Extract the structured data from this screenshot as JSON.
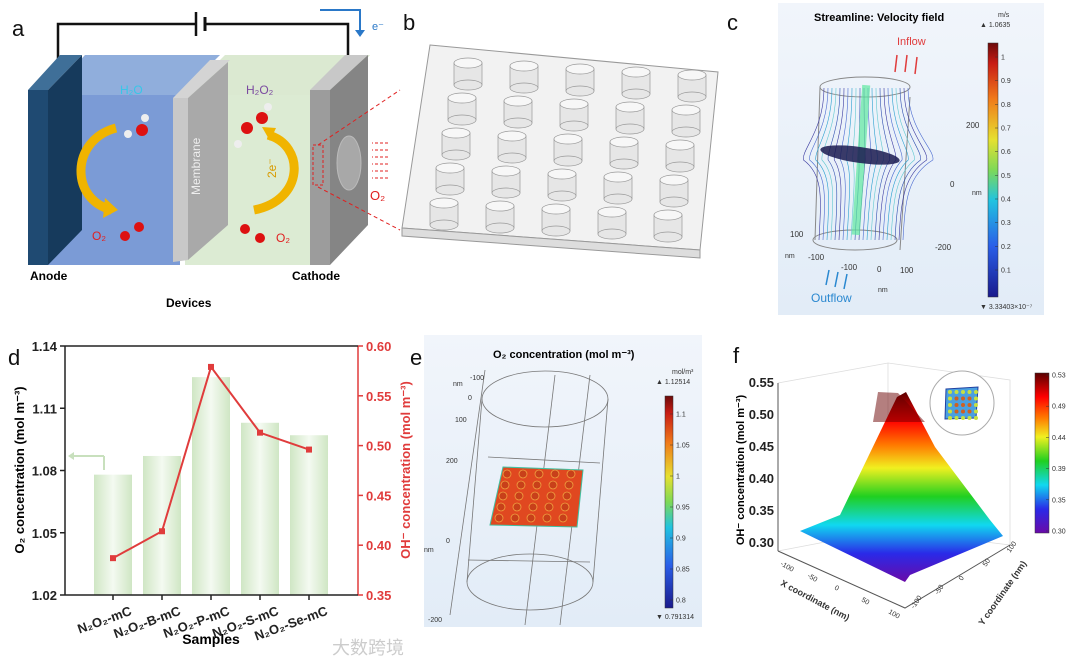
{
  "panels": {
    "a": {
      "label": "a",
      "electron": "e⁻",
      "water": "H₂O",
      "peroxide": "H₂O₂",
      "membrane": "Membrane",
      "two_e": "2e⁻",
      "o2_left": "O₂",
      "o2_right": "O₂",
      "o2_inlet": "O₂",
      "anode": "Anode",
      "cathode": "Cathode",
      "caption": "Devices"
    },
    "b": {
      "label": "b"
    },
    "c": {
      "label": "c",
      "title": "Streamline: Velocity field",
      "inflow": "Inflow",
      "outflow": "Outflow",
      "unit": "m/s",
      "max": "▲ 1.0635",
      "min": "▼ 3.33403×10⁻⁷",
      "colorbar_ticks": [
        "1",
        "0.9",
        "0.8",
        "0.7",
        "0.6",
        "0.5",
        "0.4",
        "0.3",
        "0.2",
        "0.1"
      ],
      "axis_labels": [
        "200",
        "0",
        "nm",
        "-200",
        "100",
        "nm",
        "-100",
        "-100",
        "0",
        "100",
        "nm"
      ]
    },
    "e": {
      "label": "e",
      "title": "O₂ concentration (mol m⁻³)",
      "unit": "mol/m³",
      "max": "▲ 1.12514",
      "min": "▼ 0.791314",
      "colorbar_ticks": [
        "1.1",
        "1.05",
        "1",
        "0.95",
        "0.9",
        "0.85",
        "0.8"
      ],
      "axis_labels": [
        "-100",
        "nm",
        "0",
        "100",
        "200",
        "0",
        "nm",
        "-200"
      ]
    },
    "f": {
      "label": "f",
      "zlabel": "OH⁻ concentration (mol m⁻³)",
      "xlabel": "X coordinate (nm)",
      "ylabel": "Y coordinate (nm)",
      "zticks": [
        "0.55",
        "0.50",
        "0.45",
        "0.40",
        "0.35",
        "0.30"
      ],
      "xticks": [
        "-100",
        "-50",
        "0",
        "50",
        "100"
      ],
      "yticks": [
        "100",
        "50",
        "0",
        "-50",
        "-100"
      ],
      "colorbar_ticks": [
        "0.53",
        "0.49",
        "0.44",
        "0.39",
        "0.35",
        "0.30"
      ]
    },
    "watermark": "大数跨境"
  },
  "chart_data": {
    "type": "bar+line",
    "panel_label": "d",
    "categories": [
      "N₂O₂-mC",
      "N₂O₂-B-mC",
      "N₂O₂-P-mC",
      "N₂O₂-S-mC",
      "N₂O₂-Se-mC"
    ],
    "xlabel": "Samples",
    "series": [
      {
        "name": "O₂ concentration",
        "type": "bar",
        "axis": "left",
        "color": "#d8ebcf",
        "values": [
          1.078,
          1.087,
          1.125,
          1.103,
          1.097
        ]
      },
      {
        "name": "OH⁻ concentration",
        "type": "line",
        "axis": "right",
        "color": "#e03c3c",
        "values": [
          0.387,
          0.414,
          0.579,
          0.513,
          0.496
        ]
      }
    ],
    "ylabel_left": "O₂ concentration (mol m⁻³)",
    "ylabel_right": "OH⁻ concentration (mol m⁻³)",
    "ylim_left": [
      1.02,
      1.14
    ],
    "ylim_right": [
      0.35,
      0.6
    ],
    "yticks_left": [
      "1.02",
      "1.05",
      "1.08",
      "1.11",
      "1.14"
    ],
    "yticks_right": [
      "0.35",
      "0.40",
      "0.45",
      "0.50",
      "0.55",
      "0.60"
    ]
  }
}
